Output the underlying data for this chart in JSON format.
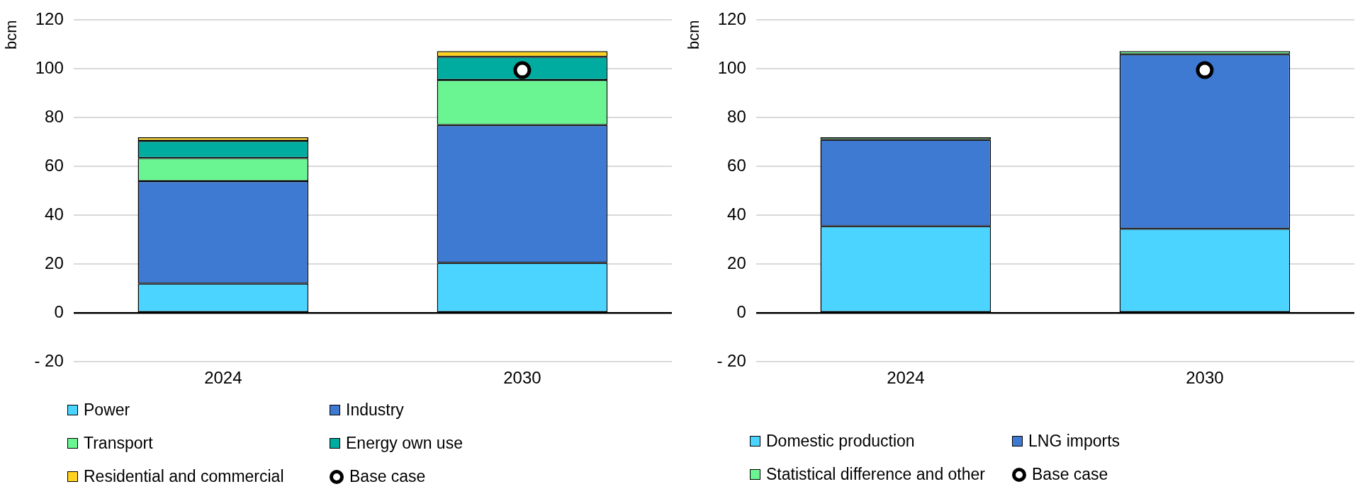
{
  "chart_data": [
    {
      "type": "bar",
      "ylabel": "bcm",
      "categories": [
        "2024",
        "2030"
      ],
      "stacked": true,
      "ylim": [
        -20,
        120
      ],
      "yticks": [
        {
          "value": -20,
          "label": "- 20"
        },
        0,
        20,
        40,
        60,
        80,
        100,
        120
      ],
      "grid": "y",
      "legend": "bottom",
      "series": [
        {
          "name": "Power",
          "color": "#4ad4ff",
          "values": [
            12,
            20.5
          ]
        },
        {
          "name": "Industry",
          "color": "#3e79d2",
          "values": [
            42,
            56.5
          ]
        },
        {
          "name": "Transport",
          "color": "#6af592",
          "values": [
            9.5,
            18.5
          ]
        },
        {
          "name": "Energy own use",
          "color": "#00ab9f",
          "values": [
            7,
            9.5
          ]
        },
        {
          "name": "Residential and commercial",
          "color": "#ffd21f",
          "values": [
            1.5,
            2.3
          ]
        },
        {
          "name": "Base case",
          "type": "scatter",
          "color": "#ffffff",
          "values": [
            null,
            99.5
          ]
        }
      ]
    },
    {
      "type": "bar",
      "ylabel": "bcm",
      "categories": [
        "2024",
        "2030"
      ],
      "stacked": true,
      "ylim": [
        -20,
        120
      ],
      "yticks": [
        {
          "value": -20,
          "label": "- 20"
        },
        0,
        20,
        40,
        60,
        80,
        100,
        120
      ],
      "grid": "y",
      "legend": "bottom",
      "series": [
        {
          "name": "Domestic production",
          "color": "#4ad4ff",
          "values": [
            35.5,
            34.5
          ]
        },
        {
          "name": "LNG imports",
          "color": "#3e79d2",
          "values": [
            35.5,
            71.5
          ]
        },
        {
          "name": "Statistical difference and other",
          "color": "#6af592",
          "values": [
            1,
            1.3
          ]
        },
        {
          "name": "Base case",
          "type": "scatter",
          "color": "#ffffff",
          "values": [
            null,
            99.5
          ]
        }
      ]
    }
  ]
}
